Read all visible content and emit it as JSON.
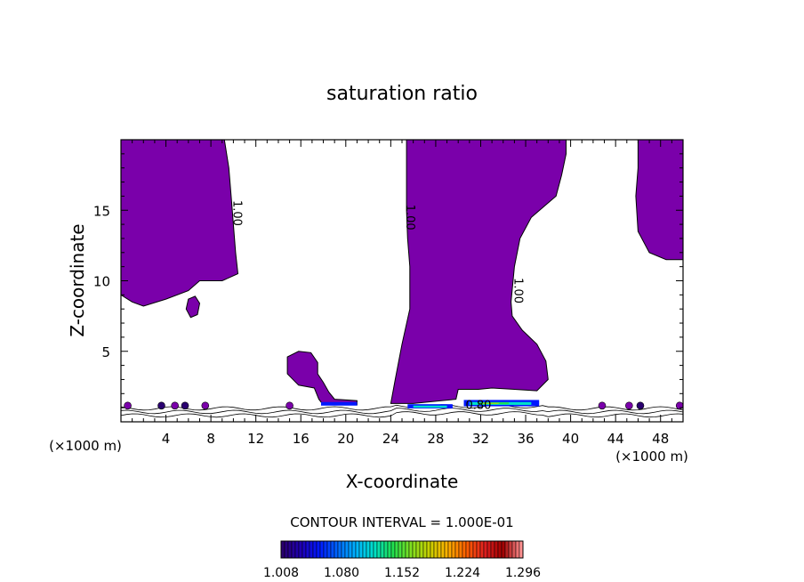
{
  "chart_data": {
    "type": "contour",
    "title": "saturation ratio",
    "xlabel": "X-coordinate",
    "ylabel": "Z-coordinate",
    "x_unit_left": "(×1000 m)",
    "x_unit_right": "(×1000 m)",
    "xlim": [
      0,
      50
    ],
    "ylim": [
      0,
      20
    ],
    "x_ticks": [
      4,
      8,
      12,
      16,
      20,
      24,
      28,
      32,
      36,
      40,
      44,
      48
    ],
    "y_ticks": [
      5,
      10,
      15
    ],
    "contour_labels": [
      {
        "text": "1.00",
        "x": 10,
        "y": 14.8
      },
      {
        "text": "1.00",
        "x": 25.4,
        "y": 14.5
      },
      {
        "text": "1.00",
        "x": 35,
        "y": 9.3
      },
      {
        "text": "0.80",
        "x": 31.8,
        "y": 0.9
      }
    ],
    "fill_color": "#7a00aa",
    "regions": [
      {
        "name": "left cloud",
        "outline": [
          [
            0,
            20
          ],
          [
            9.2,
            20
          ],
          [
            9.6,
            18
          ],
          [
            9.8,
            16
          ],
          [
            10,
            14
          ],
          [
            10.2,
            12
          ],
          [
            10.4,
            10.5
          ],
          [
            9,
            10
          ],
          [
            7,
            10
          ],
          [
            6,
            9.3
          ],
          [
            4,
            8.7
          ],
          [
            2,
            8.2
          ],
          [
            1,
            8.5
          ],
          [
            0,
            9
          ]
        ]
      },
      {
        "name": "small blob",
        "outline": [
          [
            5.8,
            8
          ],
          [
            6,
            8.7
          ],
          [
            6.6,
            8.9
          ],
          [
            7,
            8.4
          ],
          [
            6.8,
            7.6
          ],
          [
            6.2,
            7.4
          ]
        ]
      },
      {
        "name": "central cloud",
        "outline": [
          [
            25.4,
            20
          ],
          [
            39.6,
            20
          ],
          [
            39.6,
            19
          ],
          [
            39.2,
            17.5
          ],
          [
            38.7,
            16
          ],
          [
            36.5,
            14.5
          ],
          [
            35.5,
            13
          ],
          [
            35,
            11
          ],
          [
            34.7,
            8.5
          ],
          [
            34.8,
            7.5
          ],
          [
            35.7,
            6.5
          ],
          [
            37,
            5.5
          ],
          [
            37.8,
            4.3
          ],
          [
            38,
            3
          ],
          [
            37,
            2.2
          ],
          [
            35,
            2.3
          ],
          [
            33,
            2.4
          ],
          [
            31.8,
            2.3
          ],
          [
            30,
            2.3
          ],
          [
            29.8,
            1.6
          ],
          [
            28.5,
            1.5
          ],
          [
            26,
            1.3
          ],
          [
            24,
            1.3
          ],
          [
            24.4,
            3
          ],
          [
            25,
            5.5
          ],
          [
            25.7,
            8
          ],
          [
            25.7,
            11
          ],
          [
            25.5,
            13
          ],
          [
            25.4,
            15
          ]
        ]
      },
      {
        "name": "mushroom",
        "outline": [
          [
            18,
            1.2
          ],
          [
            21,
            1.2
          ],
          [
            21,
            1.5
          ],
          [
            19,
            1.6
          ],
          [
            18.5,
            2.1
          ],
          [
            18,
            2.8
          ],
          [
            17.5,
            3.4
          ],
          [
            17.5,
            4.2
          ],
          [
            16.9,
            4.9
          ],
          [
            15.8,
            5
          ],
          [
            14.8,
            4.6
          ],
          [
            14.8,
            3.4
          ],
          [
            15.8,
            2.6
          ],
          [
            17.2,
            2.4
          ],
          [
            17.6,
            1.6
          ]
        ]
      },
      {
        "name": "right cloud",
        "outline": [
          [
            46,
            20
          ],
          [
            50,
            20
          ],
          [
            50,
            11.5
          ],
          [
            48.5,
            11.5
          ],
          [
            47,
            12
          ],
          [
            46,
            13.5
          ],
          [
            45.8,
            16
          ],
          [
            46,
            18
          ]
        ]
      }
    ],
    "colorbar": {
      "label": "CONTOUR INTERVAL = 1.000E-01",
      "tick_labels": [
        "1.008",
        "1.080",
        "1.152",
        "1.224",
        "1.296"
      ],
      "colors": [
        "#2a0070",
        "#1f00b4",
        "#0018ff",
        "#0068ff",
        "#00b4ff",
        "#00e0c8",
        "#20e050",
        "#80e020",
        "#c8d000",
        "#ffb000",
        "#ff6000",
        "#e02020",
        "#a00000",
        "#ff9090"
      ]
    }
  }
}
